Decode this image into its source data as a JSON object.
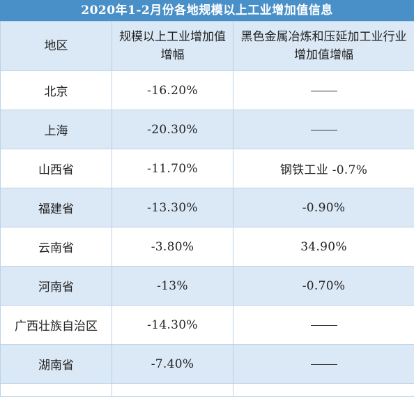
{
  "title": "2020年1-2月份各地规模以上工业增加值信息",
  "headers": {
    "region": "地区",
    "industry_growth": "规模以上工业增加值增幅",
    "steel_growth": "黑色金属冶炼和压延加工业行业增加值增幅"
  },
  "rows": [
    {
      "region": "北京",
      "industry_growth": "-16.20%",
      "steel_growth": "——"
    },
    {
      "region": "上海",
      "industry_growth": "-20.30%",
      "steel_growth": "——"
    },
    {
      "region": "山西省",
      "industry_growth": "-11.70%",
      "steel_growth": "钢铁工业 -0.7%"
    },
    {
      "region": "福建省",
      "industry_growth": "-13.30%",
      "steel_growth": "-0.90%"
    },
    {
      "region": "云南省",
      "industry_growth": "-3.80%",
      "steel_growth": "34.90%"
    },
    {
      "region": "河南省",
      "industry_growth": "-13%",
      "steel_growth": "-0.70%"
    },
    {
      "region": "广西壮族自治区",
      "industry_growth": "-14.30%",
      "steel_growth": "——"
    },
    {
      "region": "湖南省",
      "industry_growth": "-7.40%",
      "steel_growth": "——"
    }
  ]
}
